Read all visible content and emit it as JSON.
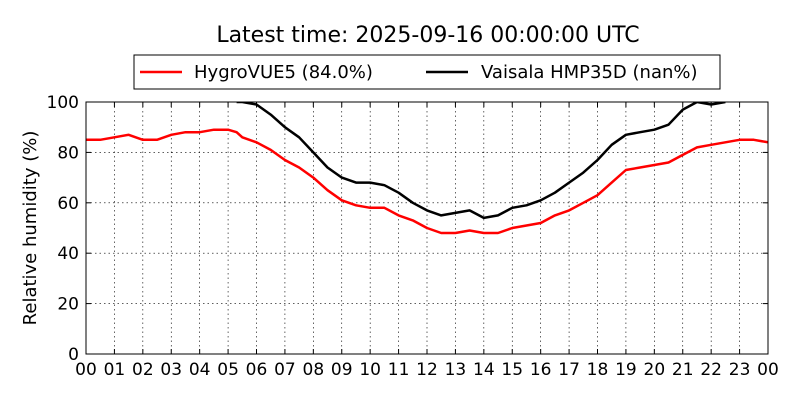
{
  "chart_data": {
    "type": "line",
    "title": "Latest time: 2025-09-16 00:00:00 UTC",
    "xlabel": "",
    "ylabel": "Relative humidity (%)",
    "xlim": [
      0,
      24
    ],
    "ylim": [
      0,
      100
    ],
    "x_ticks": [
      0,
      1,
      2,
      3,
      4,
      5,
      6,
      7,
      8,
      9,
      10,
      11,
      12,
      13,
      14,
      15,
      16,
      17,
      18,
      19,
      20,
      21,
      22,
      23,
      24
    ],
    "x_tick_labels": [
      "00",
      "01",
      "02",
      "03",
      "04",
      "05",
      "06",
      "07",
      "08",
      "09",
      "10",
      "11",
      "12",
      "13",
      "14",
      "15",
      "16",
      "17",
      "18",
      "19",
      "20",
      "21",
      "22",
      "23",
      "00"
    ],
    "y_ticks": [
      0,
      20,
      40,
      60,
      80,
      100
    ],
    "y_tick_labels": [
      "0",
      "20",
      "40",
      "60",
      "80",
      "100"
    ],
    "grid": true,
    "legend_placement": "top-center",
    "series": [
      {
        "name": "HygroVUE5 (84.0%)",
        "color": "#ff0000",
        "x": [
          0,
          0.5,
          1,
          1.5,
          2,
          2.5,
          3,
          3.5,
          4,
          4.5,
          5,
          5.3,
          5.5,
          6,
          6.5,
          7,
          7.5,
          8,
          8.5,
          9,
          9.5,
          10,
          10.5,
          11,
          11.5,
          12,
          12.5,
          13,
          13.5,
          14,
          14.5,
          15,
          15.5,
          16,
          16.5,
          17,
          17.5,
          18,
          18.5,
          19,
          19.5,
          20,
          20.5,
          21,
          21.5,
          22,
          22.5,
          23,
          23.5,
          24
        ],
        "values": [
          85,
          85,
          86,
          87,
          85,
          85,
          87,
          88,
          88,
          89,
          89,
          88,
          86,
          84,
          81,
          77,
          74,
          70,
          65,
          61,
          59,
          58,
          58,
          55,
          53,
          50,
          48,
          48,
          49,
          48,
          48,
          50,
          51,
          52,
          55,
          57,
          60,
          63,
          68,
          73,
          74,
          75,
          76,
          79,
          82,
          83,
          84,
          85,
          85,
          84
        ]
      },
      {
        "name": "Vaisala HMP35D (nan%)",
        "color": "#000000",
        "x": [
          5.3,
          5.5,
          6,
          6.5,
          7,
          7.5,
          8,
          8.5,
          9,
          9.5,
          10,
          10.5,
          11,
          11.5,
          12,
          12.5,
          13,
          13.5,
          14,
          14.5,
          15,
          15.5,
          16,
          16.5,
          17,
          17.5,
          18,
          18.5,
          19,
          19.5,
          20,
          20.5,
          21,
          21.5,
          22,
          22.5
        ],
        "values": [
          100,
          100,
          99,
          95,
          90,
          86,
          80,
          74,
          70,
          68,
          68,
          67,
          64,
          60,
          57,
          55,
          56,
          57,
          54,
          55,
          58,
          59,
          61,
          64,
          68,
          72,
          77,
          83,
          87,
          88,
          89,
          91,
          97,
          100,
          99,
          100
        ]
      }
    ]
  }
}
